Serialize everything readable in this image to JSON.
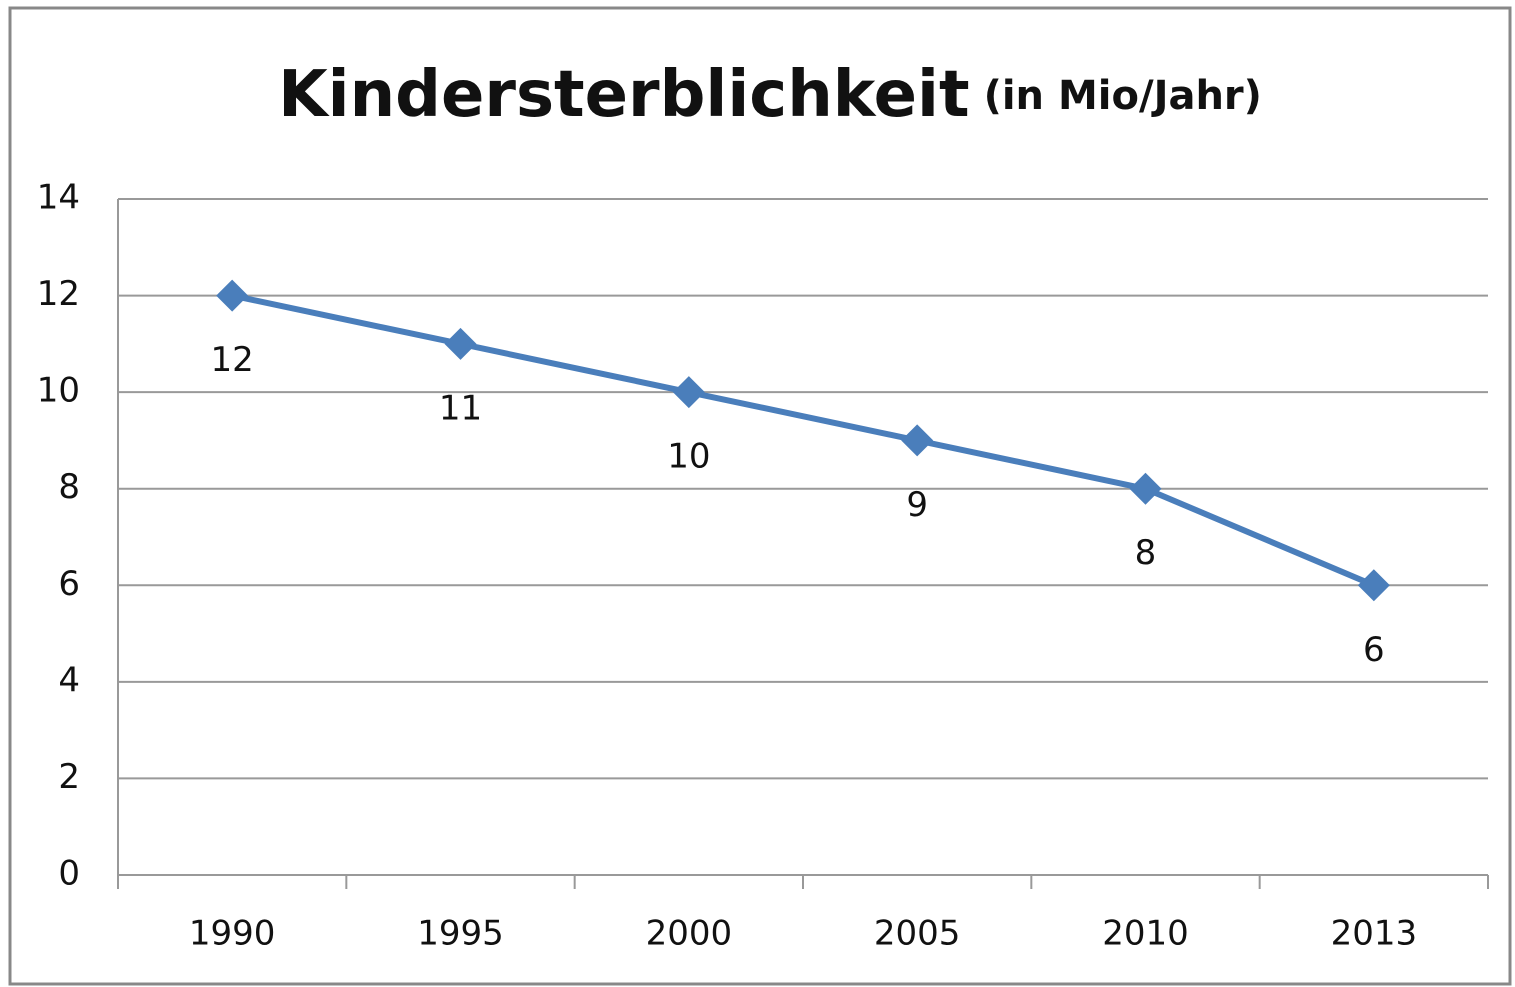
{
  "chart_data": {
    "type": "line",
    "title": "Kindersterblichkeit",
    "subtitle": "(in Mio/Jahr)",
    "categories": [
      "1990",
      "1995",
      "2000",
      "2005",
      "2010",
      "2013"
    ],
    "values": [
      12,
      11,
      10,
      9,
      8,
      6
    ],
    "color": "#4a7ebb",
    "ylim": [
      0,
      14
    ],
    "yticks": [
      0,
      2,
      4,
      6,
      8,
      10,
      12,
      14
    ],
    "grid": true,
    "data_labels": true
  }
}
